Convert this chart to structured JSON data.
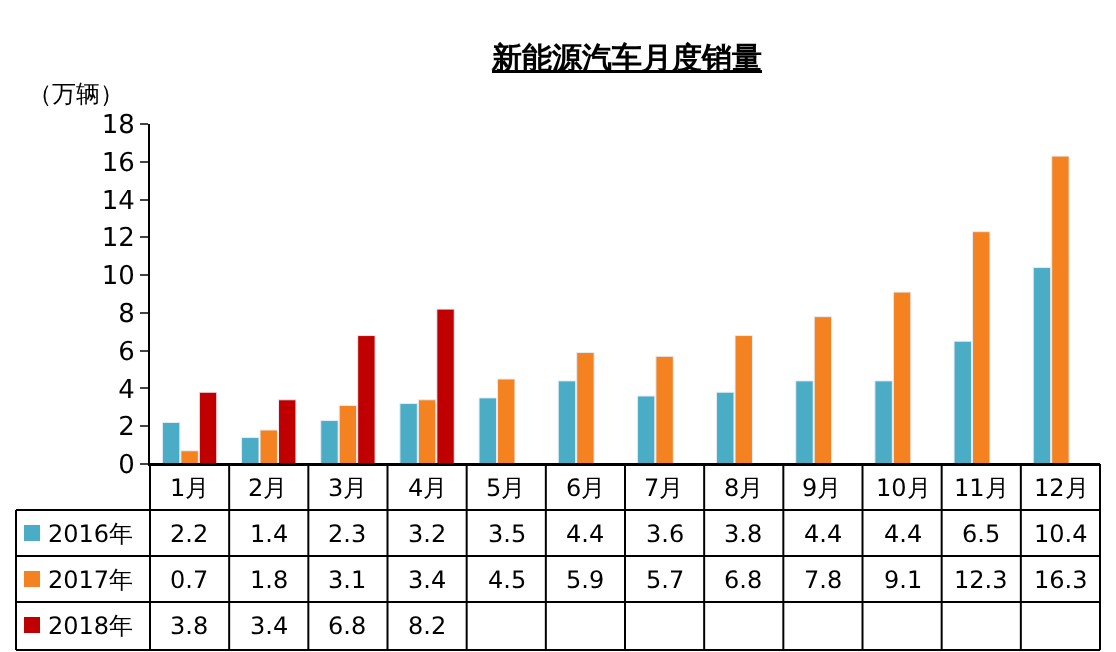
{
  "chart_data": {
    "type": "bar",
    "title": "新能源汽车月度销量",
    "ylabel": "（万辆）",
    "categories": [
      "1月",
      "2月",
      "3月",
      "4月",
      "5月",
      "6月",
      "7月",
      "8月",
      "9月",
      "10月",
      "11月",
      "12月"
    ],
    "series": [
      {
        "name": "2016年",
        "color": "#4bacc6",
        "values": [
          2.2,
          1.4,
          2.3,
          3.2,
          3.5,
          4.4,
          3.6,
          3.8,
          4.4,
          4.4,
          6.5,
          10.4
        ]
      },
      {
        "name": "2017年",
        "color": "#f58220",
        "values": [
          0.7,
          1.8,
          3.1,
          3.4,
          4.5,
          5.9,
          5.7,
          6.8,
          7.8,
          9.1,
          12.3,
          16.3
        ]
      },
      {
        "name": "2018年",
        "color": "#c00000",
        "values": [
          3.8,
          3.4,
          6.8,
          8.2,
          null,
          null,
          null,
          null,
          null,
          null,
          null,
          null
        ]
      }
    ],
    "ylim": [
      0,
      18
    ],
    "yticks": [
      0,
      2,
      4,
      6,
      8,
      10,
      12,
      14,
      16,
      18
    ],
    "legend": "bottom",
    "data_labels": true
  }
}
